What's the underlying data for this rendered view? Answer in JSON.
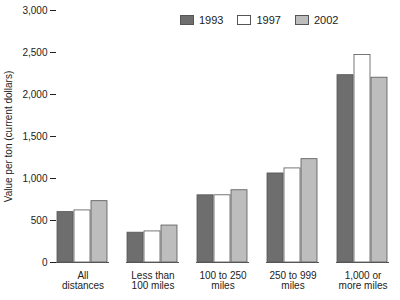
{
  "chart_data": {
    "type": "bar",
    "ylabel": "Value per ton (current dollars)",
    "categories": [
      "All distances",
      "Less than 100 miles",
      "100 to 250 miles",
      "250 to 999 miles",
      "1,000 or more miles"
    ],
    "series": [
      {
        "name": "1993",
        "color": "#6e6e6e",
        "values": [
          600,
          355,
          800,
          1060,
          2230
        ]
      },
      {
        "name": "1997",
        "color": "#ffffff",
        "values": [
          620,
          370,
          800,
          1120,
          2470
        ]
      },
      {
        "name": "2002",
        "color": "#bdbdbd",
        "values": [
          730,
          440,
          860,
          1230,
          2200
        ]
      }
    ],
    "ylim": [
      0,
      3000
    ],
    "yticks": [
      0,
      500,
      {
        "value": 1000,
        "label": "1,000"
      },
      {
        "value": 1500,
        "label": "1,500"
      },
      {
        "value": 2000,
        "label": "2,000"
      },
      {
        "value": 2500,
        "label": "2,500"
      },
      {
        "value": 3000,
        "label": "3,000"
      }
    ],
    "legend": "top",
    "grid": false
  }
}
